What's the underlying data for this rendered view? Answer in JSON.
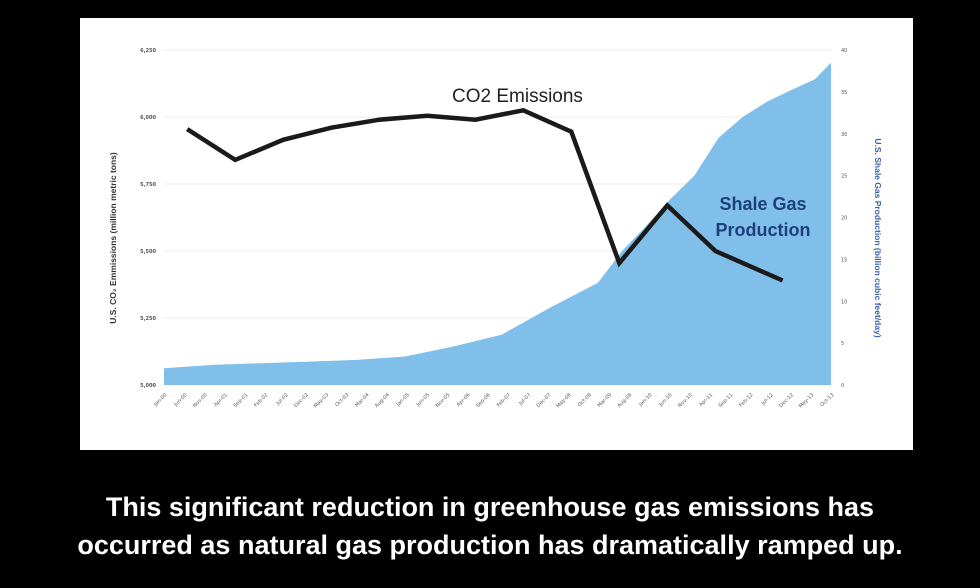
{
  "chart_data": {
    "type": "line+area",
    "title": "",
    "x_ticks": [
      "Jan-00",
      "Jun-00",
      "Nov-00",
      "Apr-01",
      "Sep-01",
      "Feb-02",
      "Jul-02",
      "Dec-02",
      "May-03",
      "Oct-03",
      "Mar-04",
      "Aug-04",
      "Jan-05",
      "Jun-05",
      "Nov-05",
      "Apr-06",
      "Sep-06",
      "Feb-07",
      "Jul-07",
      "Dec-07",
      "May-08",
      "Oct-08",
      "Mar-09",
      "Aug-09",
      "Jan-10",
      "Jun-10",
      "Nov-10",
      "Apr-11",
      "Sep-11",
      "Feb-12",
      "Jul-12",
      "Dec-12",
      "May-13",
      "Oct-13"
    ],
    "y_left": {
      "label": "U.S. CO₂ Emmissions (million metric tons)",
      "range": [
        5000,
        6250
      ],
      "ticks": [
        "5,000",
        "5,250",
        "5,500",
        "5,750",
        "6,000",
        "6,250"
      ]
    },
    "y_right": {
      "label": "U.S. Shale Gas Production (billion cubic feet/day)",
      "range": [
        0,
        40
      ],
      "ticks": [
        "0",
        "5",
        "10",
        "15",
        "20",
        "25",
        "30",
        "35",
        "40"
      ]
    },
    "series": [
      {
        "name": "CO2 Emissions",
        "label": "CO2 Emissions",
        "axis": "left",
        "color": "#1a1a1a",
        "x": [
          0,
          1,
          2,
          3,
          4,
          5,
          6,
          7,
          8,
          9,
          10,
          11,
          12.4
        ],
        "values": [
          5955,
          5840,
          5915,
          5960,
          5990,
          6005,
          5990,
          6025,
          5945,
          5455,
          5670,
          5500,
          5390
        ]
      },
      {
        "name": "Shale Gas Production",
        "label_lines": [
          "Shale Gas",
          "Production"
        ],
        "axis": "right",
        "color": "#7fbfea",
        "x_months": [
          0,
          12,
          24,
          36,
          48,
          60,
          72,
          84,
          96,
          108,
          114,
          120,
          126,
          132,
          138,
          144,
          150,
          156,
          162,
          168,
          166
        ],
        "values": [
          2.0,
          2.4,
          2.6,
          2.8,
          3.0,
          3.4,
          4.6,
          6.0,
          9.2,
          12.2,
          16.0,
          19.0,
          22.2,
          25.0,
          29.5,
          32.0,
          33.8,
          35.2,
          36.5,
          38.5,
          37.2
        ]
      }
    ]
  },
  "caption": {
    "line1": "This significant reduction in greenhouse gas emissions has",
    "line2": "occurred as natural gas production has dramatically ramped up."
  }
}
